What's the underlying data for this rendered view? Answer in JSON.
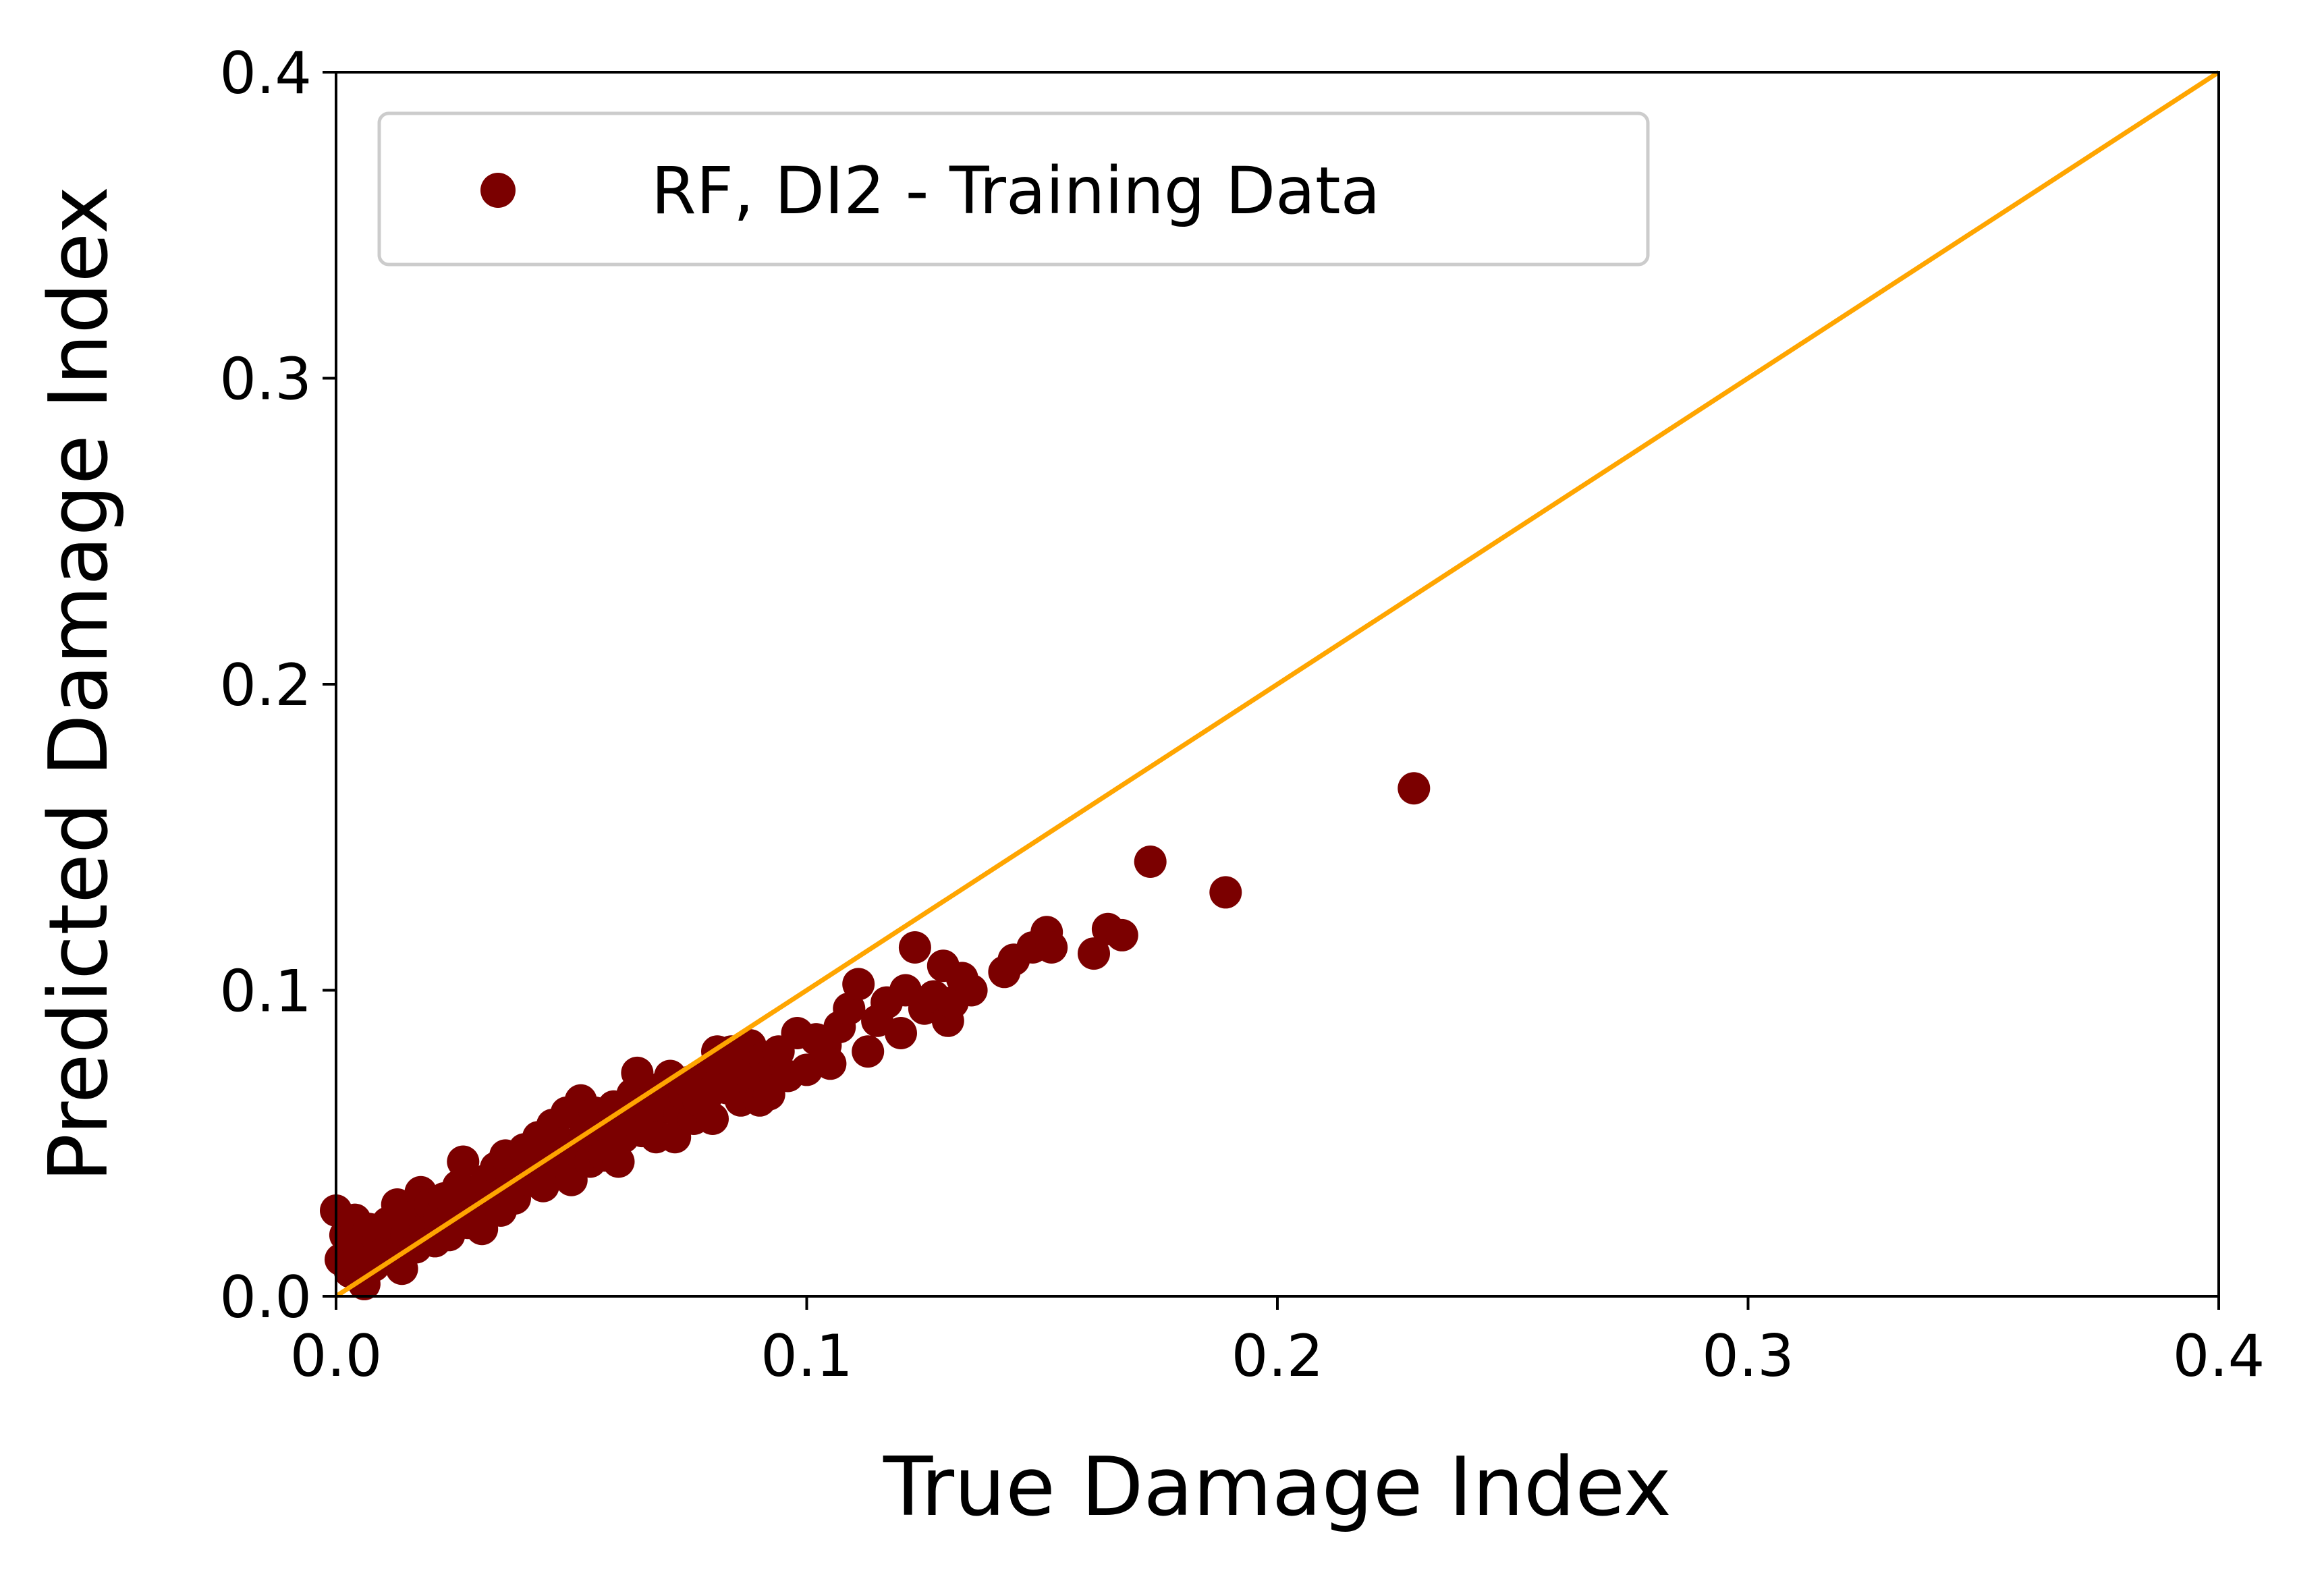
{
  "chart_data": {
    "type": "scatter",
    "xlabel": "True Damage Index",
    "ylabel": "Predicted Damage Index",
    "xlim": [
      0.0,
      0.4
    ],
    "ylim": [
      0.0,
      0.4
    ],
    "xticks": [
      "0.0",
      "0.1",
      "0.2",
      "0.3",
      "0.4"
    ],
    "yticks": [
      "0.0",
      "0.1",
      "0.2",
      "0.3",
      "0.4"
    ],
    "grid": false,
    "legend_position": "top-left",
    "series": [
      {
        "name": "RF, DI2 - Training Data",
        "color": "#7b0000",
        "kind": "scatter",
        "points": [
          [
            0.0,
            0.028
          ],
          [
            0.001,
            0.012
          ],
          [
            0.002,
            0.02
          ],
          [
            0.003,
            0.008
          ],
          [
            0.004,
            0.025
          ],
          [
            0.005,
            0.015
          ],
          [
            0.006,
            0.004
          ],
          [
            0.007,
            0.022
          ],
          [
            0.008,
            0.01
          ],
          [
            0.009,
            0.018
          ],
          [
            0.01,
            0.014
          ],
          [
            0.011,
            0.024
          ],
          [
            0.012,
            0.012
          ],
          [
            0.013,
            0.03
          ],
          [
            0.014,
            0.009
          ],
          [
            0.015,
            0.02
          ],
          [
            0.016,
            0.026
          ],
          [
            0.017,
            0.016
          ],
          [
            0.018,
            0.034
          ],
          [
            0.019,
            0.022
          ],
          [
            0.02,
            0.03
          ],
          [
            0.021,
            0.018
          ],
          [
            0.022,
            0.026
          ],
          [
            0.023,
            0.032
          ],
          [
            0.024,
            0.02
          ],
          [
            0.025,
            0.028
          ],
          [
            0.026,
            0.036
          ],
          [
            0.027,
            0.044
          ],
          [
            0.028,
            0.024
          ],
          [
            0.03,
            0.03
          ],
          [
            0.031,
            0.022
          ],
          [
            0.032,
            0.038
          ],
          [
            0.033,
            0.034
          ],
          [
            0.034,
            0.042
          ],
          [
            0.035,
            0.028
          ],
          [
            0.036,
            0.046
          ],
          [
            0.037,
            0.036
          ],
          [
            0.038,
            0.032
          ],
          [
            0.039,
            0.04
          ],
          [
            0.04,
            0.048
          ],
          [
            0.041,
            0.038
          ],
          [
            0.042,
            0.044
          ],
          [
            0.043,
            0.052
          ],
          [
            0.044,
            0.036
          ],
          [
            0.045,
            0.046
          ],
          [
            0.046,
            0.056
          ],
          [
            0.047,
            0.042
          ],
          [
            0.048,
            0.05
          ],
          [
            0.049,
            0.06
          ],
          [
            0.05,
            0.038
          ],
          [
            0.051,
            0.048
          ],
          [
            0.052,
            0.064
          ],
          [
            0.053,
            0.054
          ],
          [
            0.054,
            0.044
          ],
          [
            0.055,
            0.06
          ],
          [
            0.056,
            0.05
          ],
          [
            0.057,
            0.046
          ],
          [
            0.058,
            0.056
          ],
          [
            0.059,
            0.062
          ],
          [
            0.06,
            0.044
          ],
          [
            0.061,
            0.052
          ],
          [
            0.062,
            0.058
          ],
          [
            0.063,
            0.066
          ],
          [
            0.064,
            0.073
          ],
          [
            0.065,
            0.054
          ],
          [
            0.066,
            0.062
          ],
          [
            0.067,
            0.058
          ],
          [
            0.068,
            0.052
          ],
          [
            0.069,
            0.068
          ],
          [
            0.07,
            0.062
          ],
          [
            0.071,
            0.072
          ],
          [
            0.072,
            0.052
          ],
          [
            0.073,
            0.06
          ],
          [
            0.074,
            0.066
          ],
          [
            0.075,
            0.07
          ],
          [
            0.076,
            0.058
          ],
          [
            0.077,
            0.064
          ],
          [
            0.078,
            0.072
          ],
          [
            0.079,
            0.066
          ],
          [
            0.08,
            0.058
          ],
          [
            0.081,
            0.08
          ],
          [
            0.082,
            0.074
          ],
          [
            0.083,
            0.068
          ],
          [
            0.084,
            0.08
          ],
          [
            0.085,
            0.072
          ],
          [
            0.086,
            0.064
          ],
          [
            0.087,
            0.076
          ],
          [
            0.088,
            0.082
          ],
          [
            0.089,
            0.068
          ],
          [
            0.09,
            0.064
          ],
          [
            0.091,
            0.078
          ],
          [
            0.092,
            0.066
          ],
          [
            0.093,
            0.074
          ],
          [
            0.094,
            0.08
          ],
          [
            0.096,
            0.072
          ],
          [
            0.098,
            0.086
          ],
          [
            0.1,
            0.074
          ],
          [
            0.102,
            0.084
          ],
          [
            0.104,
            0.082
          ],
          [
            0.105,
            0.076
          ],
          [
            0.107,
            0.088
          ],
          [
            0.109,
            0.094
          ],
          [
            0.111,
            0.102
          ],
          [
            0.113,
            0.08
          ],
          [
            0.115,
            0.09
          ],
          [
            0.117,
            0.096
          ],
          [
            0.12,
            0.086
          ],
          [
            0.121,
            0.1
          ],
          [
            0.123,
            0.114
          ],
          [
            0.125,
            0.094
          ],
          [
            0.127,
            0.098
          ],
          [
            0.129,
            0.108
          ],
          [
            0.13,
            0.09
          ],
          [
            0.131,
            0.096
          ],
          [
            0.133,
            0.104
          ],
          [
            0.135,
            0.1
          ],
          [
            0.142,
            0.106
          ],
          [
            0.144,
            0.11
          ],
          [
            0.148,
            0.114
          ],
          [
            0.151,
            0.119
          ],
          [
            0.152,
            0.114
          ],
          [
            0.161,
            0.112
          ],
          [
            0.164,
            0.12
          ],
          [
            0.167,
            0.118
          ],
          [
            0.173,
            0.142
          ],
          [
            0.189,
            0.132
          ],
          [
            0.229,
            0.166
          ]
        ]
      },
      {
        "kind": "reference-line",
        "color": "#ffa500",
        "points": [
          [
            0.0,
            0.0
          ],
          [
            0.4,
            0.4
          ]
        ]
      }
    ]
  }
}
